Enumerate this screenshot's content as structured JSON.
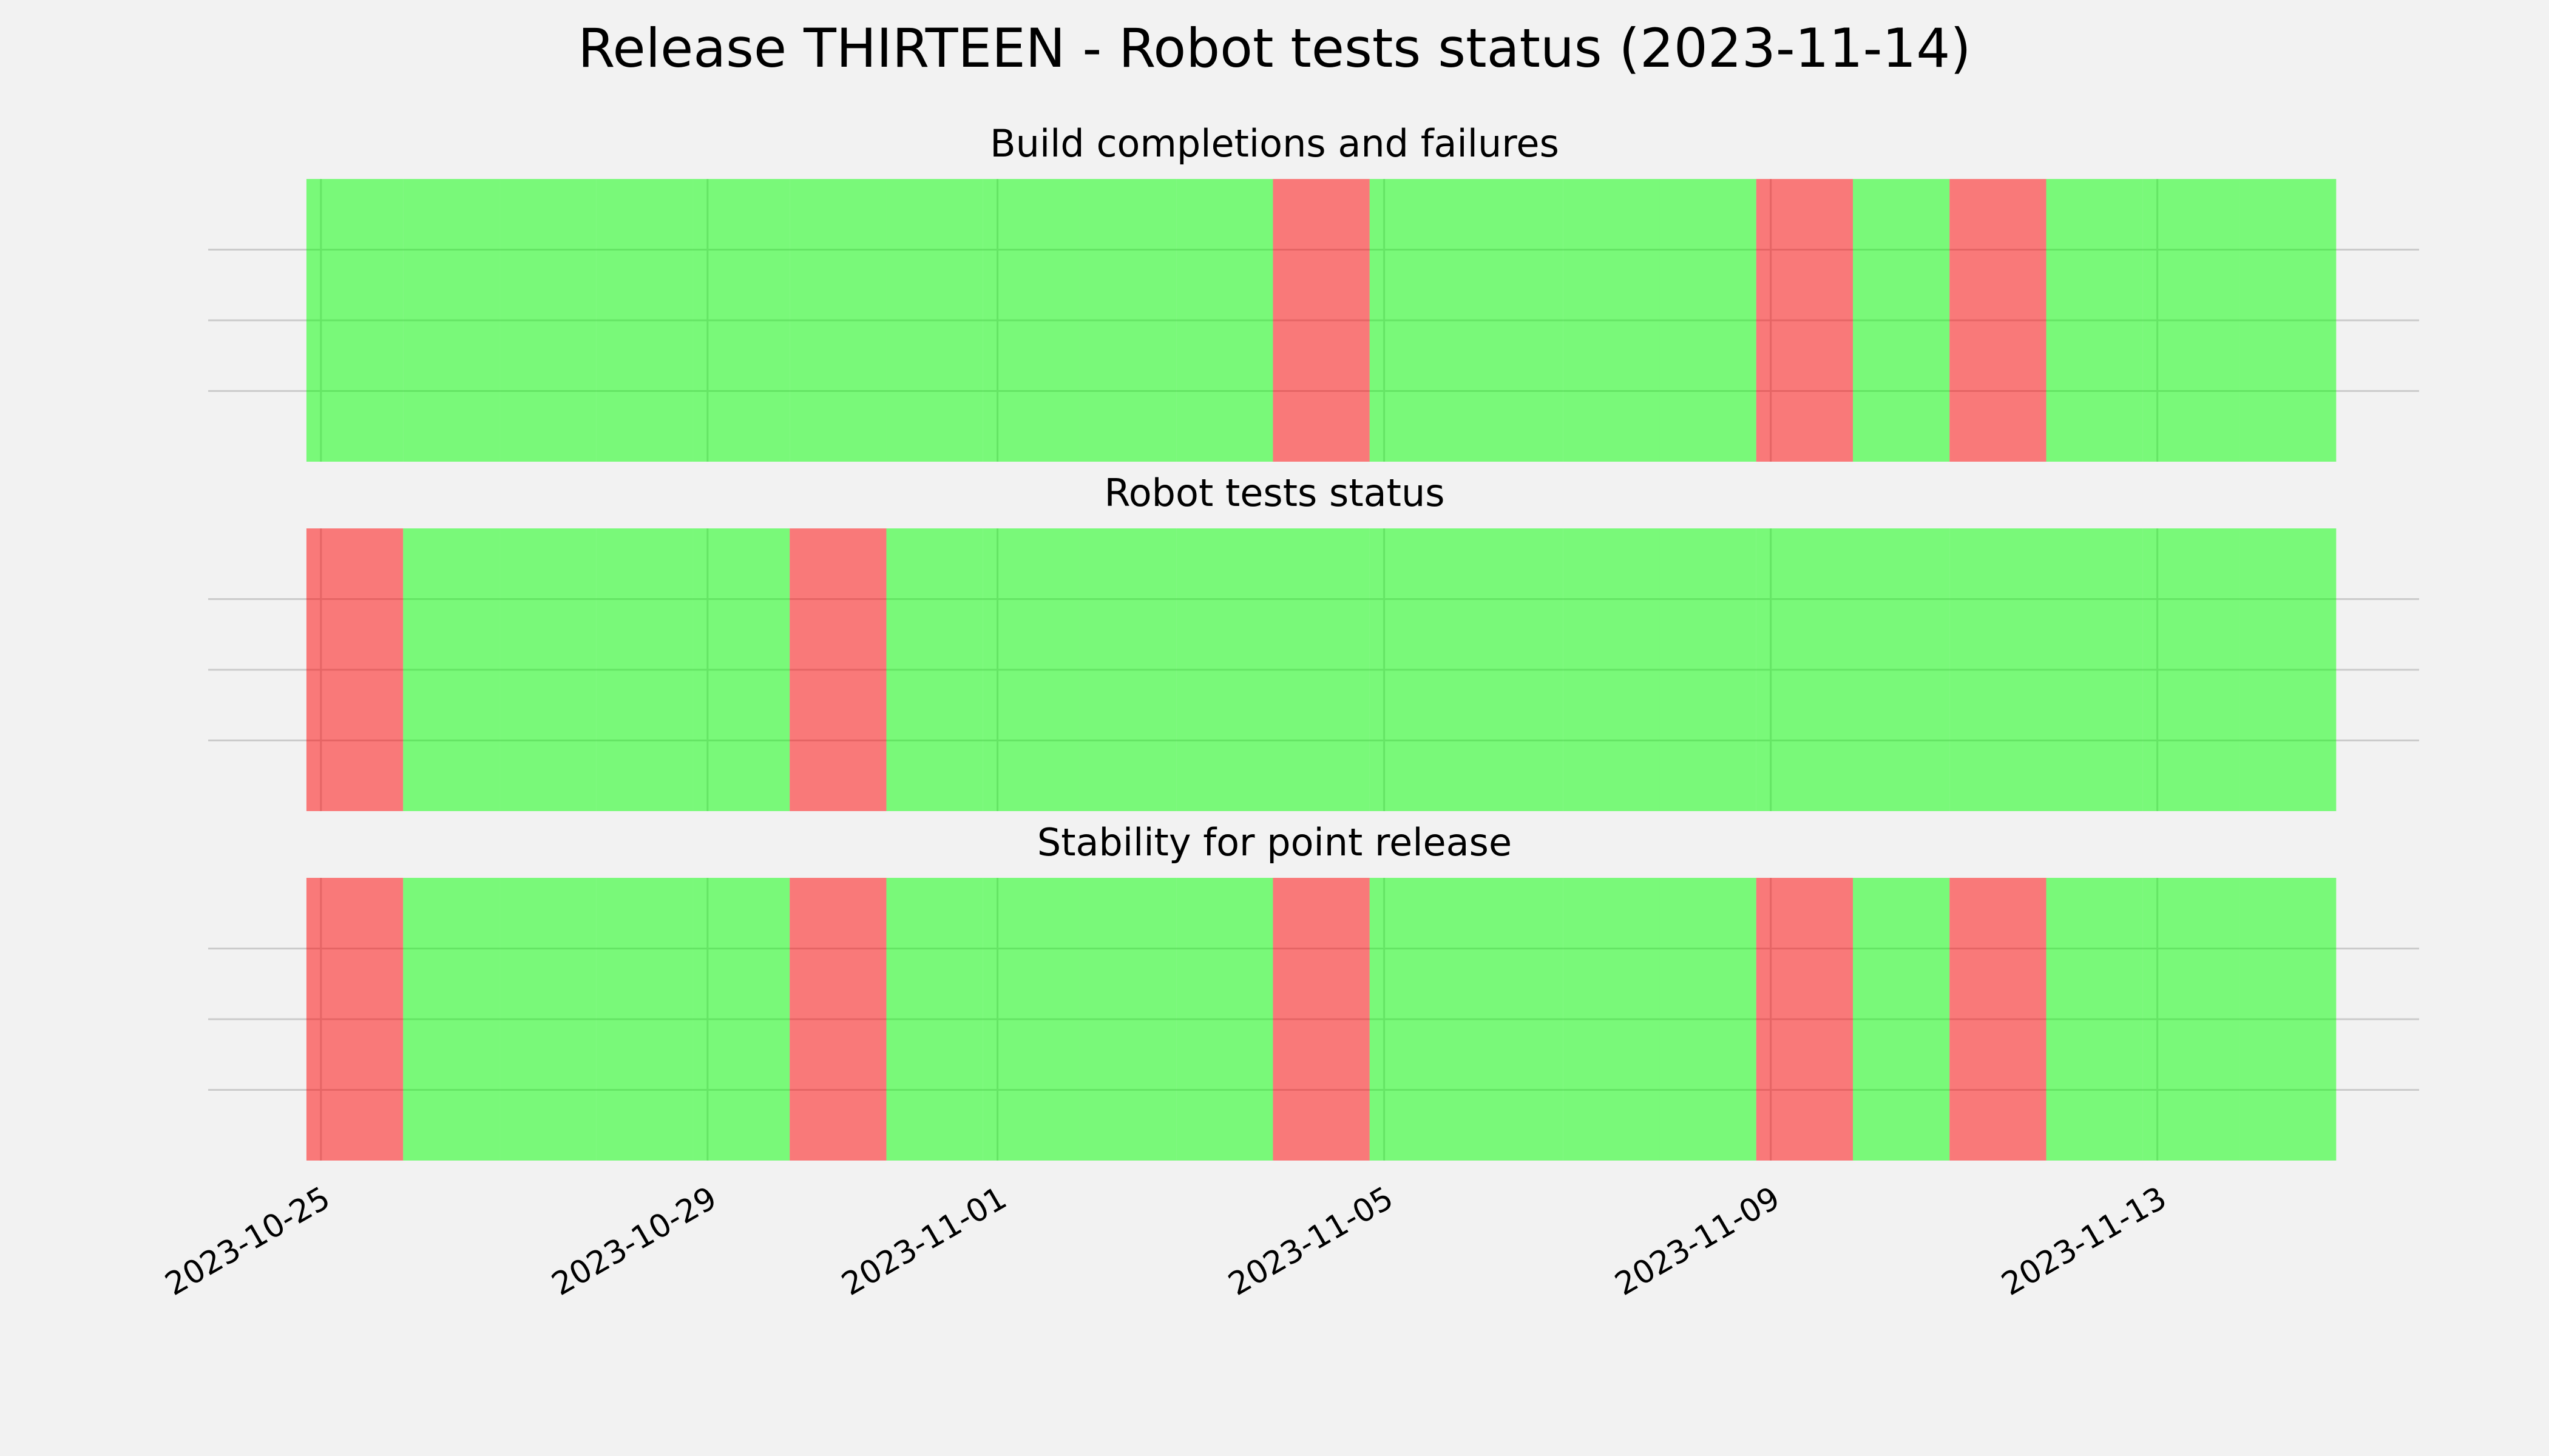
{
  "title": "Release THIRTEEN - Robot tests status (2023-11-14)",
  "chart_data": [
    {
      "type": "timeline",
      "title": "Build completions and failures",
      "x": [
        "2023-10-25",
        "2023-10-26",
        "2023-10-27",
        "2023-10-28",
        "2023-10-29",
        "2023-10-30",
        "2023-10-31",
        "2023-11-01",
        "2023-11-02",
        "2023-11-03",
        "2023-11-04",
        "2023-11-05",
        "2023-11-06",
        "2023-11-07",
        "2023-11-08",
        "2023-11-09",
        "2023-11-10",
        "2023-11-11",
        "2023-11-12",
        "2023-11-13",
        "2023-11-14"
      ],
      "values": [
        1,
        1,
        1,
        1,
        1,
        1,
        1,
        1,
        1,
        1,
        0,
        1,
        1,
        1,
        1,
        0,
        1,
        0,
        1,
        1,
        1
      ],
      "colors": {
        "pass": "#00ff00",
        "fail": "#ff0000"
      },
      "xlim": [
        "2023-10-23T20:00",
        "2023-11-15T17:00"
      ],
      "xticks": [
        "2023-10-25",
        "2023-10-29",
        "2023-11-01",
        "2023-11-05",
        "2023-11-09",
        "2023-11-13"
      ],
      "ylim": [
        0,
        1
      ],
      "yticks": [
        0.25,
        0.5,
        0.75
      ],
      "grid": true
    },
    {
      "type": "timeline",
      "title": "Robot tests status",
      "x": [
        "2023-10-25",
        "2023-10-26",
        "2023-10-27",
        "2023-10-28",
        "2023-10-29",
        "2023-10-30",
        "2023-10-31",
        "2023-11-01",
        "2023-11-02",
        "2023-11-03",
        "2023-11-04",
        "2023-11-05",
        "2023-11-06",
        "2023-11-07",
        "2023-11-08",
        "2023-11-09",
        "2023-11-10",
        "2023-11-11",
        "2023-11-12",
        "2023-11-13",
        "2023-11-14"
      ],
      "values": [
        0,
        1,
        1,
        1,
        1,
        0,
        1,
        1,
        1,
        1,
        1,
        1,
        1,
        1,
        1,
        1,
        1,
        1,
        1,
        1,
        1
      ],
      "colors": {
        "pass": "#00ff00",
        "fail": "#ff0000"
      },
      "xlim": [
        "2023-10-23T20:00",
        "2023-11-15T17:00"
      ],
      "xticks": [
        "2023-10-25",
        "2023-10-29",
        "2023-11-01",
        "2023-11-05",
        "2023-11-09",
        "2023-11-13"
      ],
      "ylim": [
        0,
        1
      ],
      "yticks": [
        0.25,
        0.5,
        0.75
      ],
      "grid": true
    },
    {
      "type": "timeline",
      "title": "Stability for point release",
      "x": [
        "2023-10-25",
        "2023-10-26",
        "2023-10-27",
        "2023-10-28",
        "2023-10-29",
        "2023-10-30",
        "2023-10-31",
        "2023-11-01",
        "2023-11-02",
        "2023-11-03",
        "2023-11-04",
        "2023-11-05",
        "2023-11-06",
        "2023-11-07",
        "2023-11-08",
        "2023-11-09",
        "2023-11-10",
        "2023-11-11",
        "2023-11-12",
        "2023-11-13",
        "2023-11-14"
      ],
      "values": [
        0,
        1,
        1,
        1,
        1,
        0,
        1,
        1,
        1,
        1,
        0,
        1,
        1,
        1,
        1,
        0,
        1,
        0,
        1,
        1,
        1
      ],
      "colors": {
        "pass": "#00ff00",
        "fail": "#ff0000"
      },
      "xlim": [
        "2023-10-23T20:00",
        "2023-11-15T17:00"
      ],
      "xticks": [
        "2023-10-25",
        "2023-10-29",
        "2023-11-01",
        "2023-11-05",
        "2023-11-09",
        "2023-11-13"
      ],
      "ylim": [
        0,
        1
      ],
      "yticks": [
        0.25,
        0.5,
        0.75
      ],
      "grid": true
    }
  ]
}
